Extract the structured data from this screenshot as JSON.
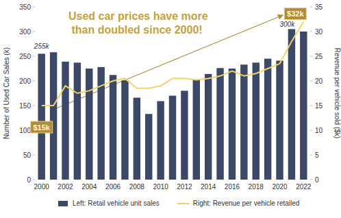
{
  "chart_data": {
    "type": "bar",
    "title": "Used car prices have more than doubled since 2000!",
    "y_label": "Number of Used Car Sales (k)",
    "y2_label": "Revenue per vehicle sold ($k)",
    "categories": [
      "2000",
      null,
      "2002",
      null,
      "2004",
      null,
      "2006",
      null,
      "2008",
      null,
      "2010",
      null,
      "2012",
      null,
      "2014",
      null,
      "2016",
      null,
      "2018",
      null,
      "2020",
      null,
      "2022"
    ],
    "series": [
      {
        "name": "Left: Retail vehicle unit sales",
        "type": "bar",
        "color": "#3b4866",
        "values": [
          255,
          258,
          239,
          237,
          225,
          228,
          212,
          201,
          166,
          133,
          159,
          170,
          180,
          203,
          214,
          226,
          225,
          233,
          237,
          245,
          241,
          305,
          300
        ],
        "value_labels": [
          "255k",
          null,
          null,
          null,
          null,
          null,
          null,
          null,
          null,
          null,
          null,
          null,
          null,
          null,
          null,
          null,
          null,
          null,
          null,
          null,
          null,
          null,
          "300k"
        ]
      },
      {
        "name": "Right: Revenue per vehicle retailed",
        "type": "line",
        "color": "#f2d36b",
        "axis": "y2",
        "values": [
          15,
          15,
          19,
          17.5,
          18,
          19,
          20,
          20.5,
          18.5,
          18.5,
          19,
          20.5,
          20.5,
          20.2,
          20.5,
          21,
          22,
          21,
          21.5,
          22.5,
          23.5,
          28,
          32
        ],
        "value_labels": [
          "$15k",
          null,
          null,
          null,
          null,
          null,
          null,
          null,
          null,
          null,
          null,
          null,
          null,
          null,
          null,
          null,
          null,
          null,
          null,
          null,
          null,
          null,
          "$32k"
        ]
      }
    ],
    "ylim": [
      0,
      350
    ],
    "yticks": [
      0,
      50,
      100,
      150,
      200,
      250,
      300,
      350
    ],
    "y2lim": [
      0,
      35
    ],
    "y2ticks": [
      0,
      5,
      10,
      15,
      20,
      25,
      30,
      35
    ],
    "grid": false,
    "legend": "bottom",
    "data_labels": true
  }
}
